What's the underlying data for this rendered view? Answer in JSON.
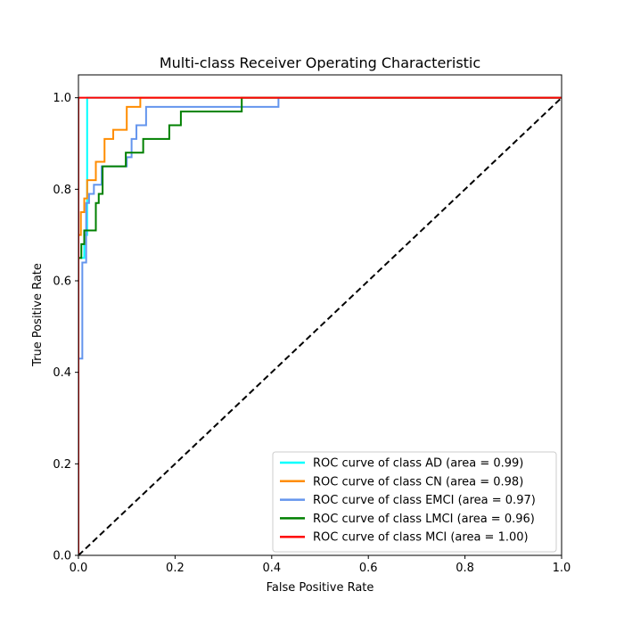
{
  "chart_data": {
    "type": "line",
    "title": "Multi-class Receiver Operating Characteristic",
    "xlabel": "False Positive Rate",
    "ylabel": "True Positive Rate",
    "xlim": [
      0.0,
      1.0
    ],
    "ylim": [
      0.0,
      1.05
    ],
    "x_ticks": [
      "0.0",
      "0.2",
      "0.4",
      "0.6",
      "0.8",
      "1.0"
    ],
    "y_ticks": [
      "0.0",
      "0.2",
      "0.4",
      "0.6",
      "0.8",
      "1.0"
    ],
    "grid": false,
    "legend_position": "lower-right",
    "series": [
      {
        "name": "ROC curve of class AD (area = 0.99)",
        "color": "#00ffff",
        "x": [
          0.0,
          0.0,
          0.0,
          0.0,
          0.012,
          0.012,
          0.018,
          0.018,
          1.0
        ],
        "y": [
          0.0,
          0.43,
          0.43,
          0.65,
          0.65,
          0.7,
          0.7,
          1.0,
          1.0
        ]
      },
      {
        "name": "ROC curve of class CN (area = 0.98)",
        "color": "#ff8c00",
        "x": [
          0.0,
          0.0,
          0.005,
          0.005,
          0.012,
          0.012,
          0.018,
          0.018,
          0.036,
          0.036,
          0.054,
          0.054,
          0.072,
          0.072,
          0.1,
          0.1,
          0.128,
          0.128,
          1.0
        ],
        "y": [
          0.0,
          0.7,
          0.7,
          0.75,
          0.75,
          0.78,
          0.78,
          0.82,
          0.82,
          0.86,
          0.86,
          0.91,
          0.91,
          0.93,
          0.93,
          0.98,
          0.98,
          1.0,
          1.0
        ]
      },
      {
        "name": "ROC curve of class EMCI (area = 0.97)",
        "color": "#6495ed",
        "x": [
          0.0,
          0.0,
          0.008,
          0.008,
          0.016,
          0.016,
          0.022,
          0.022,
          0.032,
          0.032,
          0.048,
          0.048,
          0.1,
          0.1,
          0.11,
          0.11,
          0.12,
          0.12,
          0.14,
          0.14,
          0.414,
          0.414,
          1.0
        ],
        "y": [
          0.0,
          0.43,
          0.43,
          0.64,
          0.64,
          0.77,
          0.77,
          0.79,
          0.79,
          0.81,
          0.81,
          0.85,
          0.85,
          0.87,
          0.87,
          0.91,
          0.91,
          0.94,
          0.94,
          0.98,
          0.98,
          1.0,
          1.0
        ]
      },
      {
        "name": "ROC curve of class LMCI (area = 0.96)",
        "color": "#008000",
        "x": [
          0.0,
          0.0,
          0.006,
          0.006,
          0.012,
          0.012,
          0.036,
          0.036,
          0.042,
          0.042,
          0.05,
          0.05,
          0.098,
          0.098,
          0.134,
          0.134,
          0.188,
          0.188,
          0.212,
          0.212,
          0.338,
          0.338,
          1.0
        ],
        "y": [
          0.0,
          0.65,
          0.65,
          0.68,
          0.68,
          0.71,
          0.71,
          0.77,
          0.77,
          0.79,
          0.79,
          0.85,
          0.85,
          0.88,
          0.88,
          0.91,
          0.91,
          0.94,
          0.94,
          0.97,
          0.97,
          1.0,
          1.0
        ]
      },
      {
        "name": "ROC curve of class MCI (area = 1.00)",
        "color": "#ff0000",
        "x": [
          0.0,
          0.0,
          1.0
        ],
        "y": [
          0.0,
          1.0,
          1.0
        ]
      }
    ],
    "reference_line": {
      "x": [
        0.0,
        1.0
      ],
      "y": [
        0.0,
        1.0
      ],
      "color": "#000000",
      "dash": "dashed"
    }
  }
}
